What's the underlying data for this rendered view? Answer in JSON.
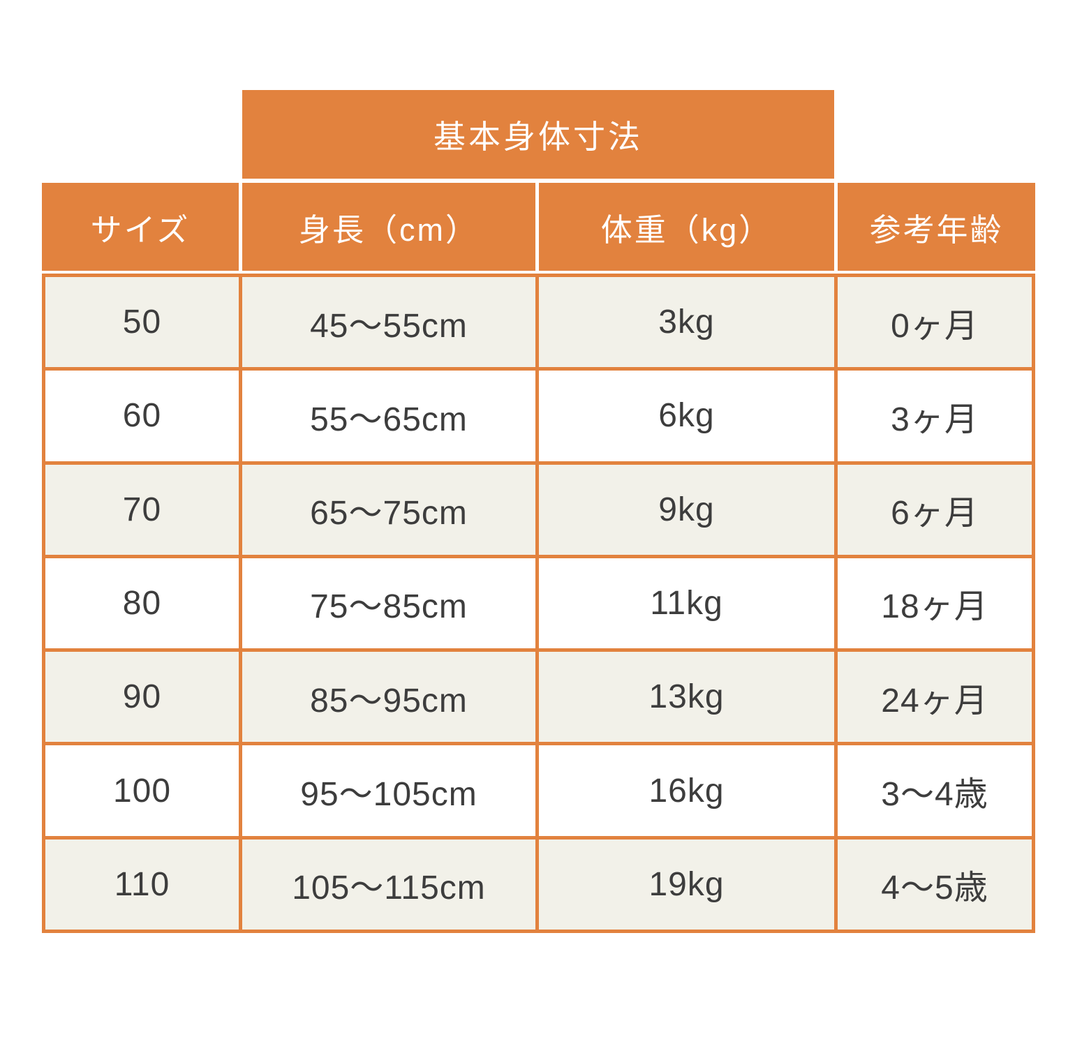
{
  "chart_data": {
    "type": "table",
    "title": "基本身体寸法",
    "columns": [
      "サイズ",
      "身長（cm）",
      "体重（kg）",
      "参考年齢"
    ],
    "rows": [
      [
        "50",
        "45〜55cm",
        "3kg",
        "0ヶ月"
      ],
      [
        "60",
        "55〜65cm",
        "6kg",
        "3ヶ月"
      ],
      [
        "70",
        "65〜75cm",
        "9kg",
        "6ヶ月"
      ],
      [
        "80",
        "75〜85cm",
        "11kg",
        "18ヶ月"
      ],
      [
        "90",
        "85〜95cm",
        "13kg",
        "24ヶ月"
      ],
      [
        "100",
        "95〜105cm",
        "16kg",
        "3〜4歳"
      ],
      [
        "110",
        "105〜115cm",
        "19kg",
        "4〜5歳"
      ]
    ],
    "layout_hints": {
      "banner_spans_columns": [
        "身長（cm）",
        "体重（kg）"
      ],
      "zebra_striping": "odd rows cream, even rows white",
      "grid": "orange grid lines in body, white gaps in header"
    }
  },
  "colors": {
    "accent_orange": "#E2823E",
    "row_cream": "#F2F1E9",
    "row_white": "#FFFFFF",
    "header_text": "#FFFFFF",
    "body_text": "#3D3D3D",
    "page_background": "#FFFFFF"
  }
}
